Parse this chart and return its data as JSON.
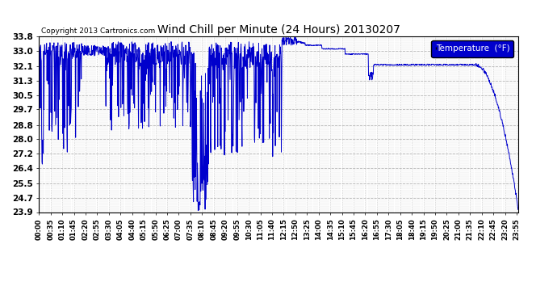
{
  "title": "Wind Chill per Minute (24 Hours) 20130207",
  "copyright": "Copyright 2013 Cartronics.com",
  "legend_label": "Temperature  (°F)",
  "line_color": "#0000CC",
  "background_color": "#ffffff",
  "grid_color": "#b0b0b0",
  "ylim": [
    23.9,
    33.8
  ],
  "yticks": [
    23.9,
    24.7,
    25.5,
    26.4,
    27.2,
    28.0,
    28.8,
    29.7,
    30.5,
    31.3,
    32.1,
    33.0,
    33.8
  ],
  "total_minutes": 1440,
  "label_every_n_minutes": 35
}
